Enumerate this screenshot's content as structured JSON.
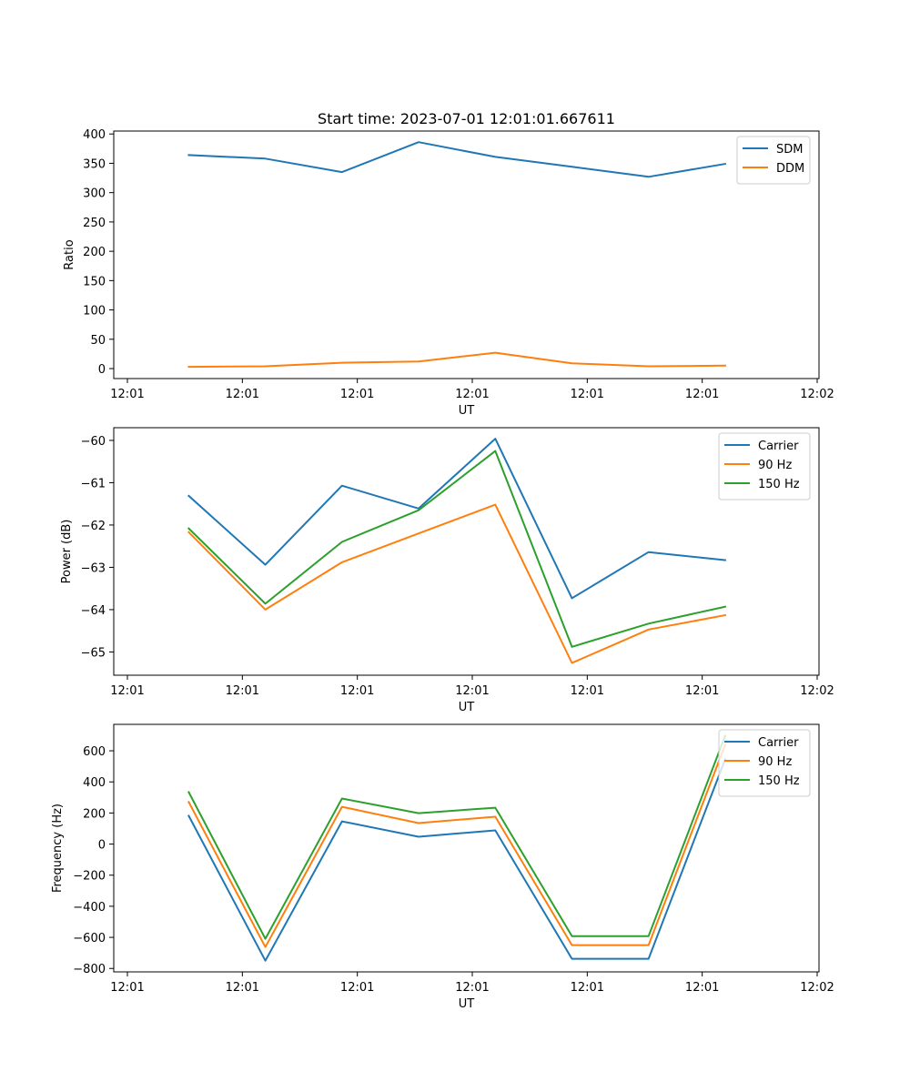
{
  "chart_data": [
    {
      "type": "line",
      "title": "Start time: 2023-07-01 12:01:01.667611",
      "xlabel": "UT",
      "ylabel": "Ratio",
      "x_index": [
        1,
        2,
        3,
        4,
        5,
        6,
        7,
        8
      ],
      "xlim": [
        0.2,
        9.2
      ],
      "x_ticks": [
        0.2,
        1.7,
        3.2,
        4.7,
        6.2,
        7.7,
        9.2
      ],
      "x_tick_labels": [
        "12:01",
        "12:01",
        "12:01",
        "12:01",
        "12:01",
        "12:01",
        "12:02"
      ],
      "ylim": [
        -17,
        405
      ],
      "y_ticks": [
        0,
        50,
        100,
        150,
        200,
        250,
        300,
        350,
        400
      ],
      "y_tick_labels": [
        "0",
        "50",
        "100",
        "150",
        "200",
        "250",
        "300",
        "350",
        "400"
      ],
      "legend_position": "top-right",
      "series": [
        {
          "name": "SDM",
          "color": "#1f77b4",
          "values": [
            364,
            358,
            335,
            386,
            361,
            344,
            327,
            349
          ]
        },
        {
          "name": "DDM",
          "color": "#ff7f0e",
          "values": [
            3,
            4,
            10,
            12,
            27,
            9,
            4,
            5
          ]
        }
      ]
    },
    {
      "type": "line",
      "title": "",
      "xlabel": "UT",
      "ylabel": "Power (dB)",
      "x_index": [
        1,
        2,
        3,
        4,
        5,
        6,
        7,
        8
      ],
      "xlim": [
        0.2,
        9.2
      ],
      "x_ticks": [
        0.2,
        1.7,
        3.2,
        4.7,
        6.2,
        7.7,
        9.2
      ],
      "x_tick_labels": [
        "12:01",
        "12:01",
        "12:01",
        "12:01",
        "12:01",
        "12:01",
        "12:02"
      ],
      "ylim": [
        -65.55,
        -59.7
      ],
      "y_ticks": [
        -65,
        -64,
        -63,
        -62,
        -61,
        -60
      ],
      "y_tick_labels": [
        "−65",
        "−64",
        "−63",
        "−62",
        "−61",
        "−60"
      ],
      "legend_position": "top-right",
      "series": [
        {
          "name": "Carrier",
          "color": "#1f77b4",
          "values": [
            -61.31,
            -62.94,
            -61.07,
            -61.61,
            -59.96,
            -63.73,
            -62.64,
            -62.83
          ]
        },
        {
          "name": "90 Hz",
          "color": "#ff7f0e",
          "values": [
            -62.17,
            -64.0,
            -62.88,
            -62.2,
            -61.52,
            -65.26,
            -64.47,
            -64.13
          ]
        },
        {
          "name": "150 Hz",
          "color": "#2ca02c",
          "values": [
            -62.08,
            -63.86,
            -62.4,
            -61.65,
            -60.25,
            -64.88,
            -64.33,
            -63.93
          ]
        }
      ]
    },
    {
      "type": "line",
      "title": "",
      "xlabel": "UT",
      "ylabel": "Frequency (Hz)",
      "x_index": [
        1,
        2,
        3,
        4,
        5,
        6,
        7,
        8
      ],
      "xlim": [
        0.2,
        9.2
      ],
      "x_ticks": [
        0.2,
        1.7,
        3.2,
        4.7,
        6.2,
        7.7,
        9.2
      ],
      "x_tick_labels": [
        "12:01",
        "12:01",
        "12:01",
        "12:01",
        "12:01",
        "12:01",
        "12:02"
      ],
      "ylim": [
        -822,
        770
      ],
      "y_ticks": [
        -800,
        -600,
        -400,
        -200,
        0,
        200,
        400,
        600
      ],
      "y_tick_labels": [
        "−800",
        "−600",
        "−400",
        "−200",
        "0",
        "200",
        "400",
        "600"
      ],
      "legend_position": "top-right",
      "series": [
        {
          "name": "Carrier",
          "color": "#1f77b4",
          "values": [
            182,
            -750,
            146,
            47,
            88,
            -738,
            -738,
            545
          ]
        },
        {
          "name": "90 Hz",
          "color": "#ff7f0e",
          "values": [
            270,
            -662,
            240,
            135,
            176,
            -650,
            -650,
            639
          ]
        },
        {
          "name": "150 Hz",
          "color": "#2ca02c",
          "values": [
            334,
            -609,
            293,
            199,
            234,
            -592,
            -592,
            697
          ]
        }
      ]
    }
  ]
}
